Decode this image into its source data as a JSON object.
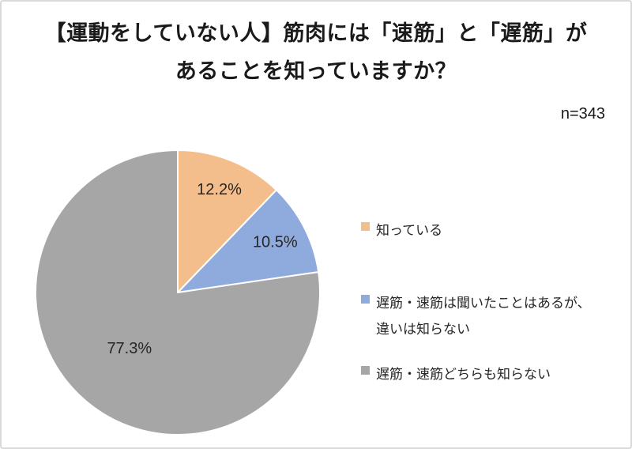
{
  "page": {
    "background": "#FFFFFF",
    "border_color": "#D9D9D9"
  },
  "title": {
    "full": "【運動をしていない人】筋肉には「速筋」と「遅筋」があることを知っていますか？",
    "lines": [
      "【運動をしていない人】筋肉には「速筋」と「遅筋」が",
      "あることを知っていますか？"
    ]
  },
  "sample_size": "n=343",
  "chart_data": {
    "type": "pie",
    "title": "【運動をしていない人】筋肉には「速筋」と「遅筋」があることを知っていますか？",
    "categories": [
      "知っている",
      "遅筋・速筋は聞いたことはあるが、違いは知らない",
      "遅筋・速筋どちらも知らない"
    ],
    "values": [
      12.2,
      10.5,
      77.3
    ],
    "value_labels": [
      "12.2%",
      "10.5%",
      "77.3%"
    ],
    "colors": [
      "#F4BE8C",
      "#8FAADC",
      "#A6A6A6"
    ],
    "slice_border_color": "#FFFFFF",
    "unit": "%",
    "start_angle": "top",
    "direction": "clockwise",
    "legend_position": "right",
    "annotation": "n=343"
  }
}
